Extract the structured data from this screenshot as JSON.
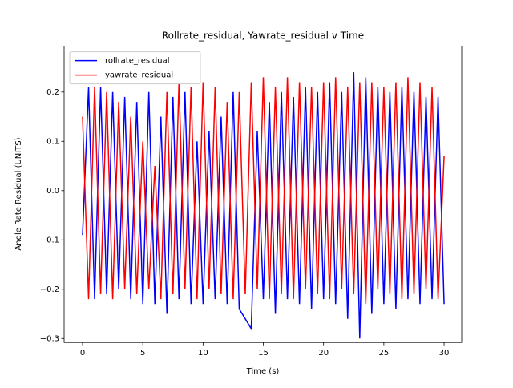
{
  "chart_data": {
    "type": "line",
    "title": "Rollrate_residual, Yawrate_residual v Time",
    "xlabel": "Time (s)",
    "ylabel": "Angle Rate Residual (UNITS)",
    "x": [
      0,
      0.5,
      1,
      1.5,
      2,
      2.5,
      3,
      3.5,
      4,
      4.5,
      5,
      5.5,
      6,
      6.5,
      7,
      7.5,
      8,
      8.5,
      9,
      9.5,
      10,
      10.5,
      11,
      11.5,
      12,
      12.5,
      13,
      13.5,
      14,
      14.5,
      15,
      15.5,
      16,
      16.5,
      17,
      17.5,
      18,
      18.5,
      19,
      19.5,
      20,
      20.5,
      21,
      21.5,
      22,
      22.5,
      23,
      23.5,
      24,
      24.5,
      25,
      25.5,
      26,
      26.5,
      27,
      27.5,
      28,
      28.5,
      29,
      29.5,
      30
    ],
    "series": [
      {
        "name": "rollrate_residual",
        "color": "#0000ff",
        "values": [
          -0.09,
          0.21,
          -0.22,
          0.21,
          -0.21,
          0.2,
          -0.2,
          0.19,
          -0.22,
          0.18,
          -0.23,
          0.2,
          -0.23,
          0.15,
          -0.25,
          0.19,
          -0.22,
          0.2,
          -0.23,
          0.1,
          -0.23,
          0.12,
          -0.22,
          0.15,
          -0.23,
          0.2,
          -0.24,
          -0.26,
          -0.28,
          0.12,
          -0.22,
          0.18,
          -0.25,
          0.2,
          -0.22,
          0.19,
          -0.23,
          0.21,
          -0.24,
          0.2,
          -0.22,
          0.22,
          -0.23,
          0.2,
          -0.26,
          0.24,
          -0.3,
          0.23,
          -0.25,
          0.21,
          -0.23,
          0.2,
          -0.24,
          0.21,
          -0.22,
          0.2,
          -0.23,
          0.19,
          -0.22,
          0.19,
          -0.23
        ]
      },
      {
        "name": "yawrate_residual",
        "color": "#ff0000",
        "values": [
          0.15,
          -0.22,
          0.21,
          -0.21,
          0.2,
          -0.22,
          0.18,
          -0.2,
          0.15,
          -0.21,
          0.1,
          -0.2,
          0.05,
          -0.22,
          0.2,
          -0.21,
          0.22,
          -0.2,
          0.21,
          -0.22,
          0.22,
          -0.2,
          0.21,
          -0.21,
          0.18,
          -0.22,
          0.2,
          -0.21,
          0.22,
          -0.2,
          0.23,
          -0.22,
          0.21,
          -0.21,
          0.23,
          -0.22,
          0.22,
          -0.2,
          0.21,
          -0.21,
          0.22,
          -0.22,
          0.23,
          -0.2,
          0.21,
          -0.21,
          0.22,
          -0.23,
          0.22,
          -0.2,
          0.21,
          -0.21,
          0.22,
          -0.22,
          0.23,
          -0.21,
          0.22,
          -0.2,
          0.21,
          -0.22,
          0.07
        ]
      }
    ],
    "xlim": [
      -1.53,
      31.46
    ],
    "ylim": [
      -0.308,
      0.293
    ],
    "xticks": [
      0,
      5,
      10,
      15,
      20,
      25,
      30
    ],
    "yticks": [
      {
        "value": -0.3,
        "label": "−0.3"
      },
      {
        "value": -0.2,
        "label": "−0.2"
      },
      {
        "value": -0.1,
        "label": "−0.1"
      },
      {
        "value": 0,
        "label": "0.0"
      },
      0.1,
      0.2
    ],
    "legend": "upper left"
  }
}
